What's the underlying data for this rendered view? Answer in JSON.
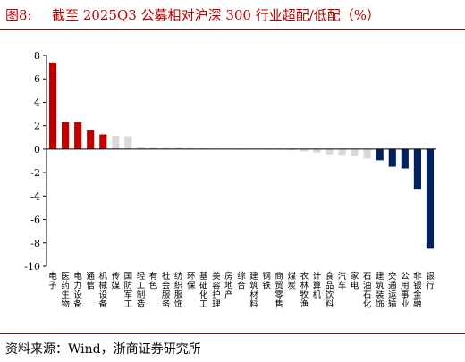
{
  "figure": {
    "label": "图8:",
    "title": "截至 2025Q3 公募相对沪深 300 行业超配/低配（%）",
    "source": "资料来源：Wind，浙商证券研究所"
  },
  "colors": {
    "accent": "#c00000",
    "positive": "#c00000",
    "neutral": "#d9d9d9",
    "negative": "#002060"
  },
  "chart_data": {
    "type": "bar",
    "title": "截至 2025Q3 公募相对沪深 300 行业超配/低配（%）",
    "xlabel": "",
    "ylabel": "",
    "ylim": [
      -10,
      8
    ],
    "yticks": [
      8,
      6,
      4,
      2,
      0,
      -2,
      -4,
      -6,
      -8,
      -10
    ],
    "grid": false,
    "legend": "none",
    "categories": [
      "电子",
      "医药生物",
      "电力设备",
      "通信",
      "机械设备",
      "传媒",
      "国防军工",
      "轻工制造",
      "有色",
      "社会服务",
      "纺织服饰",
      "环保",
      "基础化工",
      "美容护理",
      "房地产",
      "综合",
      "建筑材料",
      "钢铁",
      "商贸零售",
      "煤炭",
      "农林牧渔",
      "计算机",
      "食品饮料",
      "汽车",
      "家电",
      "石油石化",
      "建筑装饰",
      "交通运输",
      "公用事业",
      "非银金融",
      "银行"
    ],
    "values": [
      7.4,
      2.3,
      2.3,
      1.6,
      1.25,
      1.15,
      1.1,
      0.15,
      0.12,
      0.1,
      0.1,
      0.08,
      0.06,
      0.05,
      0.02,
      0.01,
      0.0,
      -0.02,
      -0.05,
      -0.1,
      -0.2,
      -0.3,
      -0.45,
      -0.5,
      -0.55,
      -0.8,
      -0.95,
      -1.5,
      -1.65,
      -3.45,
      -8.5
    ],
    "bar_colors": [
      "#c00000",
      "#c00000",
      "#c00000",
      "#c00000",
      "#c00000",
      "#d9d9d9",
      "#d9d9d9",
      "#d9d9d9",
      "#d9d9d9",
      "#d9d9d9",
      "#d9d9d9",
      "#d9d9d9",
      "#d9d9d9",
      "#d9d9d9",
      "#d9d9d9",
      "#d9d9d9",
      "#d9d9d9",
      "#d9d9d9",
      "#d9d9d9",
      "#d9d9d9",
      "#d9d9d9",
      "#d9d9d9",
      "#d9d9d9",
      "#d9d9d9",
      "#d9d9d9",
      "#d9d9d9",
      "#002060",
      "#002060",
      "#002060",
      "#002060",
      "#002060"
    ]
  }
}
